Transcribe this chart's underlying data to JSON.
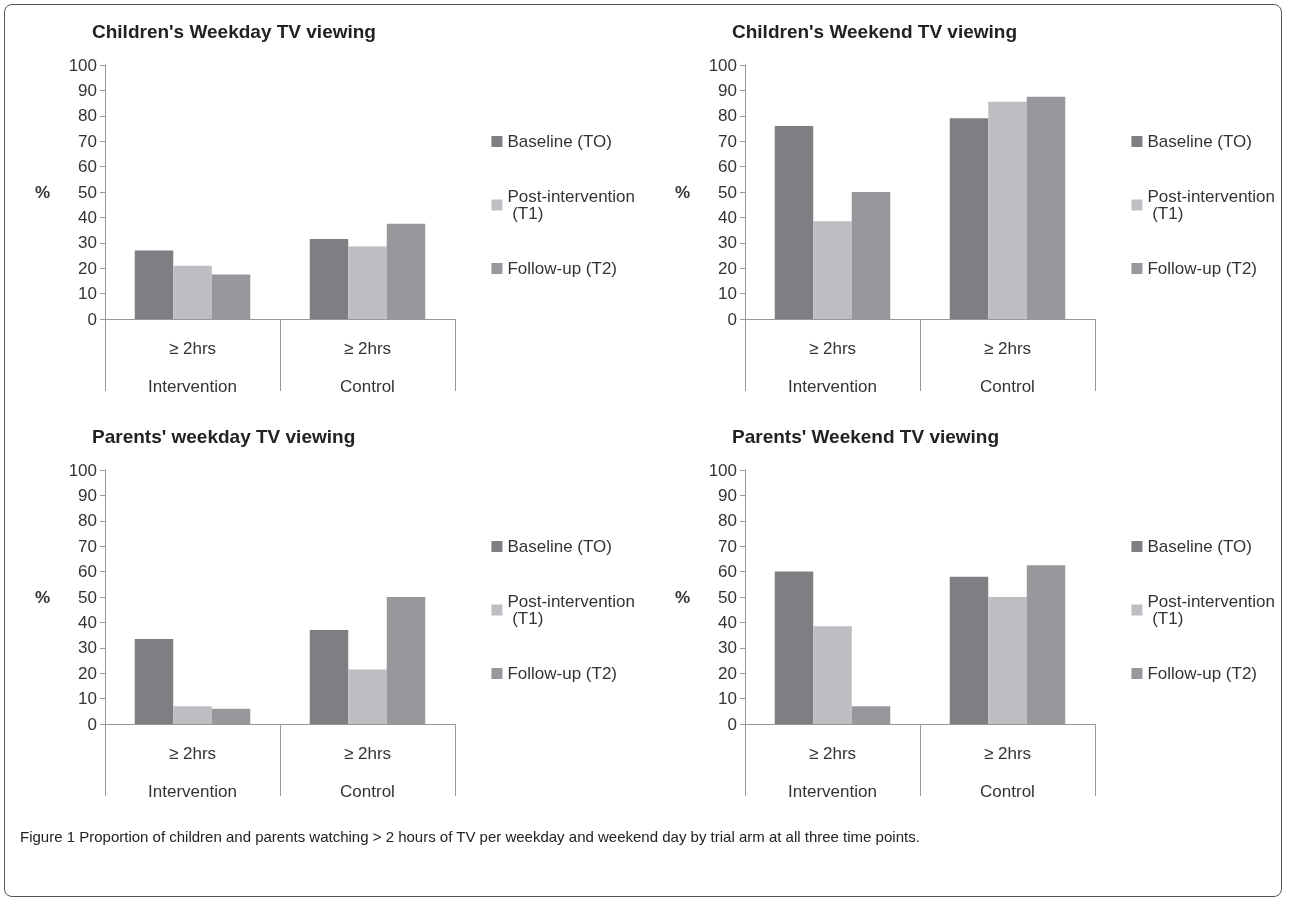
{
  "chart_data": [
    {
      "type": "bar",
      "title": "Children's Weekday TV viewing",
      "ylabel": "%",
      "categories": [
        "≥ 2hrs\nIntervention",
        "≥ 2hrs\nControl"
      ],
      "ylim": [
        0,
        100
      ],
      "yticks": [
        0,
        10,
        20,
        30,
        40,
        50,
        60,
        70,
        80,
        90,
        100
      ],
      "legend": "right",
      "grid": false,
      "series": [
        {
          "name": "Baseline (TO)",
          "color": "#7f7f83",
          "values": [
            27,
            31.5
          ]
        },
        {
          "name": "Post-intervention (T1)",
          "color": "#bdbec2",
          "values": [
            21,
            28.5
          ]
        },
        {
          "name": "Follow-up (T2)",
          "color": "#97989c",
          "values": [
            17.5,
            37.5
          ]
        }
      ],
      "annotations": [
        "Figure 1 Proportion of children and parents watching > 2 hours of TV per weekday and weekend day by trial arm at all three time points."
      ]
    },
    {
      "type": "bar",
      "title": "Children's Weekend TV viewing",
      "ylabel": "%",
      "categories": [
        "≥ 2hrs\nIntervention",
        "≥ 2hrs\nControl"
      ],
      "ylim": [
        0,
        100
      ],
      "yticks": [
        0,
        10,
        20,
        30,
        40,
        50,
        60,
        70,
        80,
        90,
        100
      ],
      "legend": "right",
      "grid": false,
      "series": [
        {
          "name": "Baseline (TO)",
          "color": "#7f7f83",
          "values": [
            76,
            79
          ]
        },
        {
          "name": "Post-intervention (T1)",
          "color": "#bdbec2",
          "values": [
            38.5,
            85.5
          ]
        },
        {
          "name": "Follow-up (T2)",
          "color": "#97989c",
          "values": [
            50,
            87.5
          ]
        }
      ]
    },
    {
      "type": "bar",
      "title": "Parents' weekday TV viewing",
      "ylabel": "%",
      "categories": [
        "≥ 2hrs\nIntervention",
        "≥ 2hrs\nControl"
      ],
      "ylim": [
        0,
        100
      ],
      "yticks": [
        0,
        10,
        20,
        30,
        40,
        50,
        60,
        70,
        80,
        90,
        100
      ],
      "legend": "right",
      "grid": false,
      "series": [
        {
          "name": "Baseline (TO)",
          "color": "#7f7f83",
          "values": [
            33.5,
            37
          ]
        },
        {
          "name": "Post-intervention (T1)",
          "color": "#bdbec2",
          "values": [
            7,
            21.5
          ]
        },
        {
          "name": "Follow-up (T2)",
          "color": "#97989c",
          "values": [
            6,
            50
          ]
        }
      ]
    },
    {
      "type": "bar",
      "title": "Parents' Weekend TV viewing",
      "ylabel": "%",
      "categories": [
        "≥ 2hrs\nIntervention",
        "≥ 2hrs\nControl"
      ],
      "ylim": [
        0,
        100
      ],
      "yticks": [
        0,
        10,
        20,
        30,
        40,
        50,
        60,
        70,
        80,
        90,
        100
      ],
      "legend": "right",
      "grid": false,
      "series": [
        {
          "name": "Baseline (TO)",
          "color": "#7f7f83",
          "values": [
            60,
            58
          ]
        },
        {
          "name": "Post-intervention (T1)",
          "color": "#bdbec2",
          "values": [
            38.5,
            50
          ]
        },
        {
          "name": "Follow-up (T2)",
          "color": "#97989c",
          "values": [
            7,
            62.5
          ]
        }
      ]
    }
  ]
}
